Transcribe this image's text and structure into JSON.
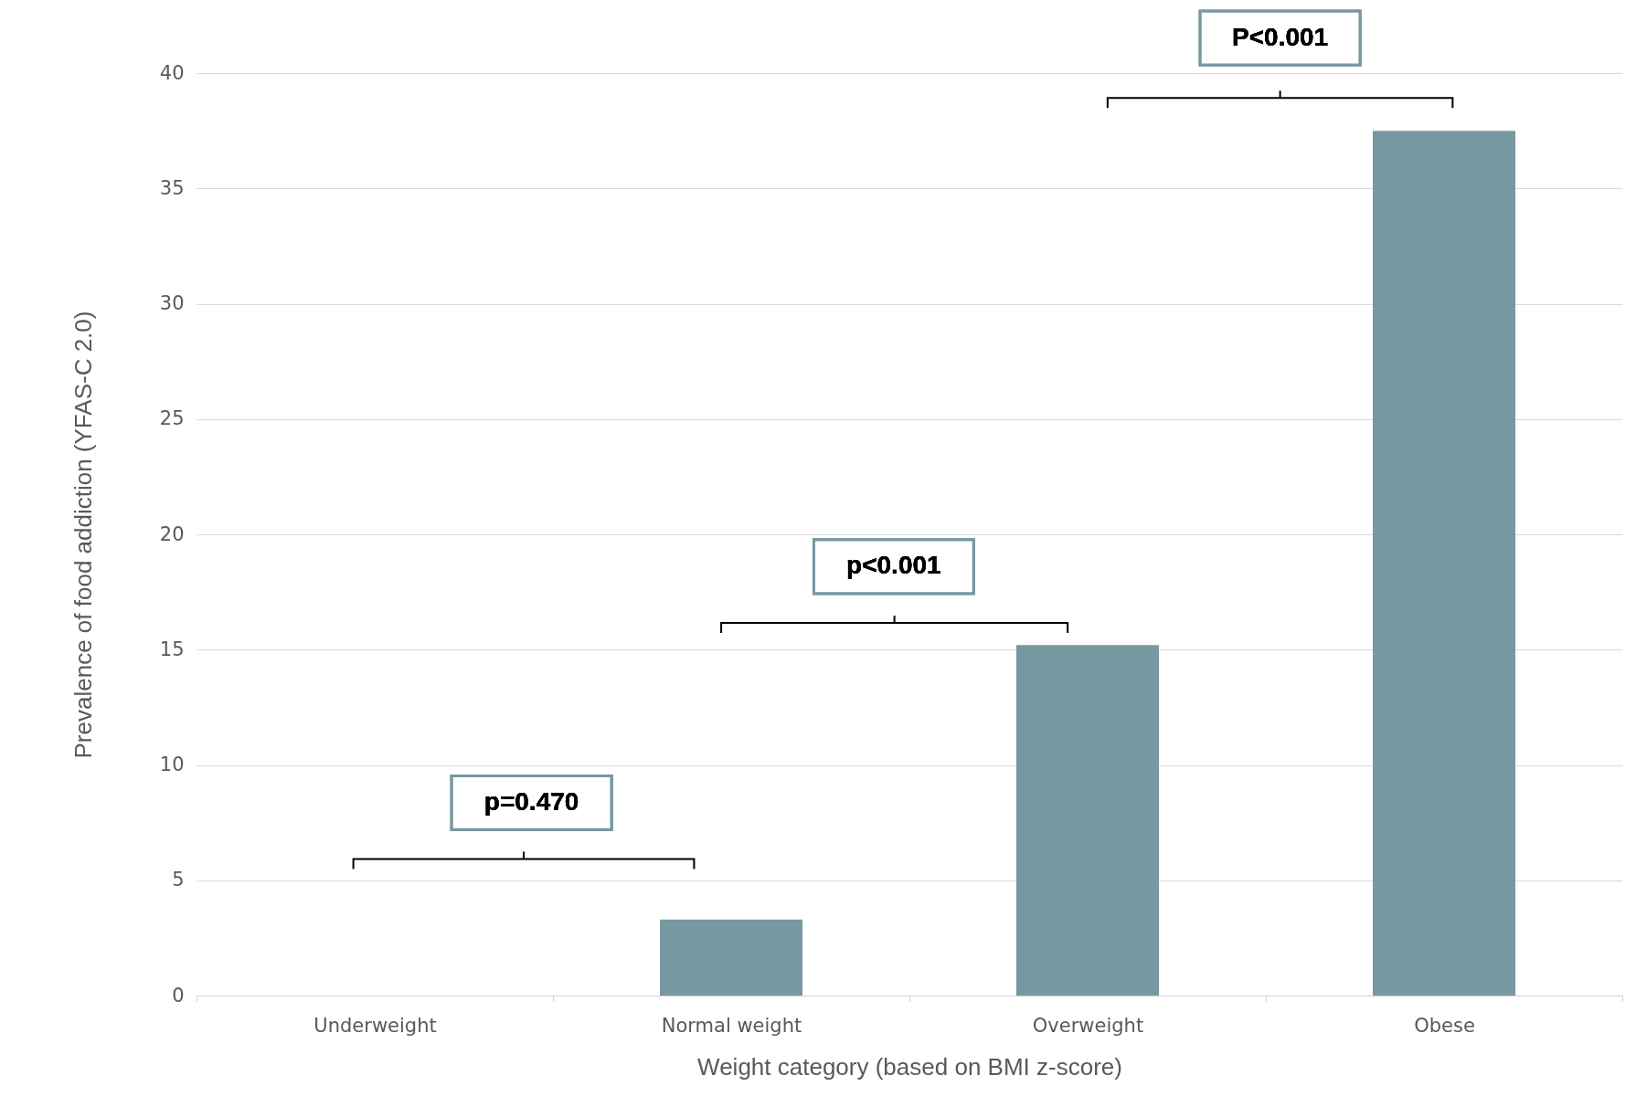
{
  "chart_data": {
    "type": "bar",
    "xlabel": "Weight category (based on BMI z-score)",
    "ylabel": "Prevalence of food addiction (YFAS-C 2.0)",
    "categories": [
      "Underweight",
      "Normal weight",
      "Overweight",
      "Obese"
    ],
    "values": [
      0,
      3.3,
      15.2,
      37.5
    ],
    "color": "#7698a0",
    "ylim": [
      0,
      40
    ],
    "yticks": [
      0,
      5,
      10,
      15,
      20,
      25,
      30,
      35,
      40
    ],
    "grid": "y",
    "annotations": [
      "p=0.470",
      "p<0.001",
      "P<0.001"
    ]
  }
}
